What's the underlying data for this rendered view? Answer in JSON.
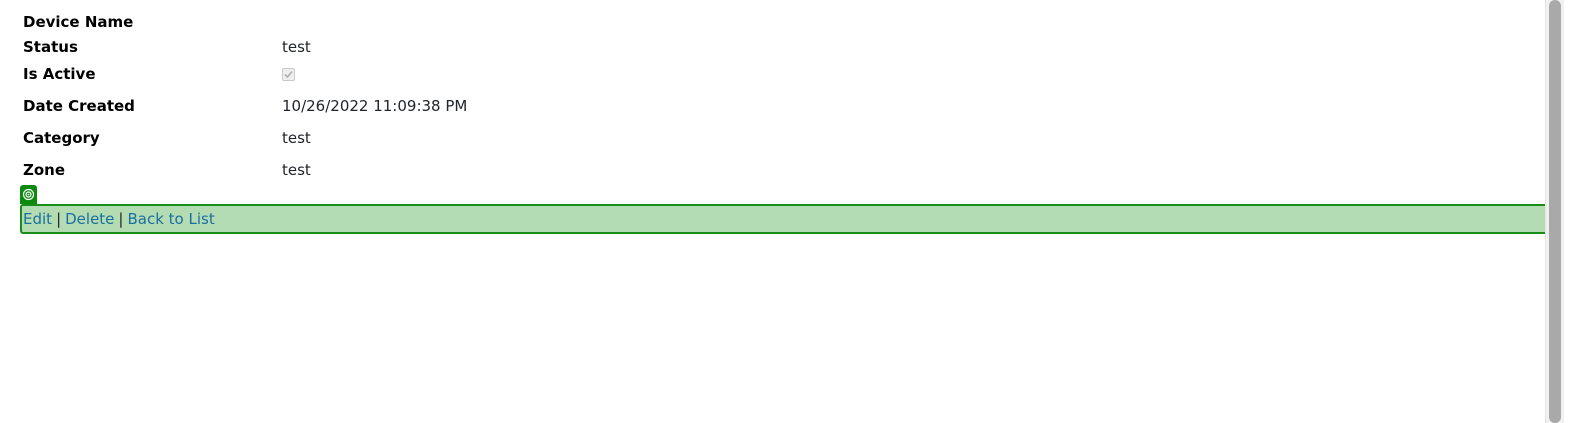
{
  "details": {
    "device_name_label": "Device Name",
    "device_name_value": "",
    "status_label": "Status",
    "status_value": "test",
    "is_active_label": "Is Active",
    "is_active_checked": true,
    "date_created_label": "Date Created",
    "date_created_value": "10/26/2022 11:09:38 PM",
    "category_label": "Category",
    "category_value": "test",
    "zone_label": "Zone",
    "zone_value": "test"
  },
  "actions": {
    "edit_label": "Edit",
    "separator": "|",
    "delete_label": "Delete",
    "back_label": "Back to List"
  },
  "colors": {
    "highlight_bg": "#b3dcb3",
    "highlight_border": "#1a8c1a",
    "link": "#1a6fa0"
  },
  "icons": {
    "focus_marker": "target-icon",
    "checkbox": "checkmark-icon"
  }
}
